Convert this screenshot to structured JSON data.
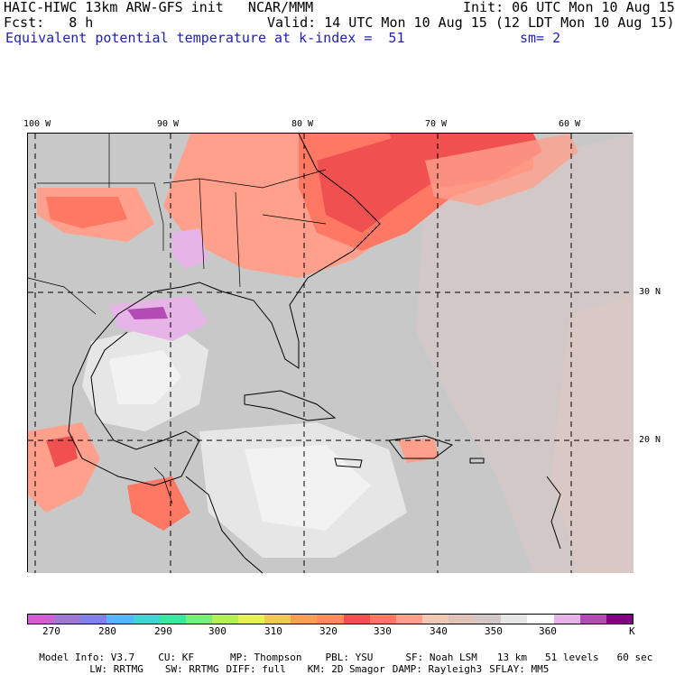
{
  "header": {
    "model_line": "HAIC-HIWC 13km ARW-GFS init   NCAR/MMM",
    "init_line": "Init: 06 UTC Mon 10 Aug 15",
    "fcst_line": "Fcst:   8 h",
    "valid_line": "Valid: 14 UTC Mon 10 Aug 15 (12 LDT Mon 10 Aug 15)",
    "field_name": "Equivalent potential temperature",
    "level_text": "at k-index =  51",
    "smooth_text": "sm= 2"
  },
  "axes": {
    "top_lon_labels": [
      "100 W",
      "90 W",
      "80 W",
      "70 W",
      "60 W"
    ],
    "right_lat_labels": [
      "30 N",
      "20 N"
    ]
  },
  "colorbar": {
    "colors": [
      "#d25fd2",
      "#a078d2",
      "#8282e6",
      "#5ab4ff",
      "#46d2d2",
      "#3ce6a0",
      "#78f078",
      "#b4f05a",
      "#e6f05a",
      "#f0c85a",
      "#f5a05a",
      "#ff8c5a",
      "#f05050",
      "#ff7864",
      "#ffa08c",
      "#f0c8b4",
      "#e1c3b9",
      "#d2c8c8",
      "#e6e6e6",
      "#ffffff",
      "#e6b4e6",
      "#b44bb4",
      "#820082"
    ],
    "tick_labels": [
      "270",
      "280",
      "290",
      "300",
      "310",
      "320",
      "330",
      "340",
      "350",
      "360"
    ],
    "unit": "K"
  },
  "footer": {
    "model_info": "Model Info: V3.7",
    "cu": "CU: KF",
    "mp": "MP: Thompson",
    "pbl": "PBL: YSU",
    "sf": "SF: Noah LSM",
    "res": "13 km",
    "levels": "51 levels",
    "dt": "60 sec",
    "lw": "LW: RRTMG",
    "sw": "SW: RRTMG",
    "diff": "DIFF: full",
    "km": "KM: 2D Smagor",
    "damp": "DAMP: Rayleigh3",
    "sflay": "SFLAY: MM5"
  }
}
